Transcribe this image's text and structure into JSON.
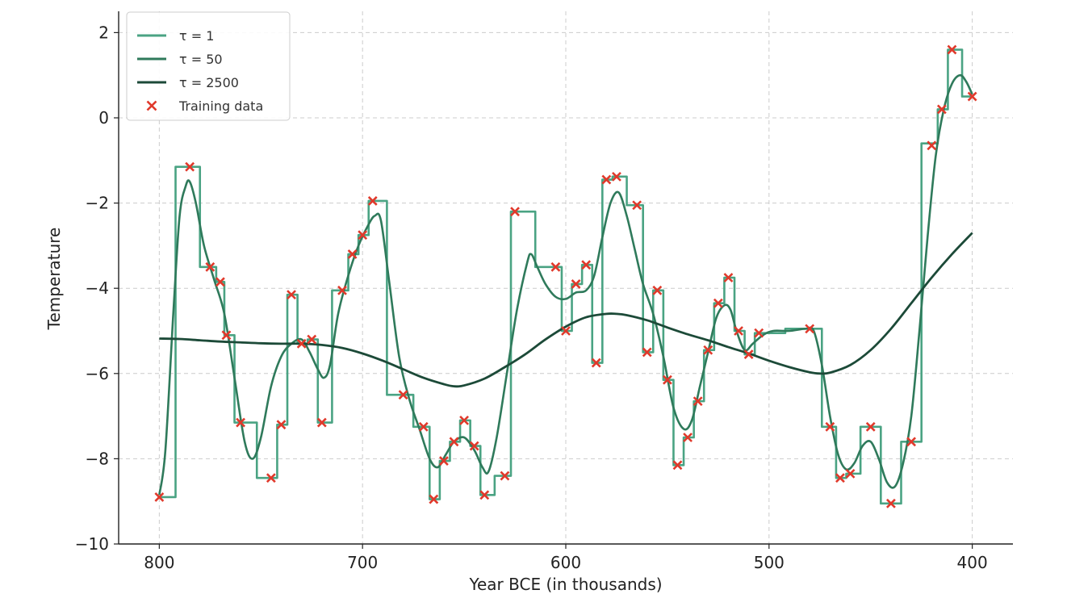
{
  "chart_data": {
    "type": "line",
    "xlabel": "Year BCE (in thousands)",
    "ylabel": "Temperature",
    "xlim": [
      820,
      380
    ],
    "ylim": [
      -10,
      2.5
    ],
    "x_reversed": true,
    "xticks": [
      800,
      700,
      600,
      500,
      400
    ],
    "yticks": [
      -10,
      -8,
      -6,
      -4,
      -2,
      0,
      2
    ],
    "xtick_labels": [
      "800",
      "700",
      "600",
      "500",
      "400"
    ],
    "ytick_labels": [
      "−10",
      "−8",
      "−6",
      "−4",
      "−2",
      "0",
      "2"
    ],
    "grid": true,
    "legend_position": "top-left",
    "legend": [
      "τ = 1",
      "τ = 50",
      "τ = 2500",
      "Training data"
    ],
    "colors": {
      "tau_1": "#4aa383",
      "tau_50": "#2f7a5b",
      "tau_2500": "#1c4a38",
      "training": "#e0392b"
    },
    "training_data": [
      [
        800,
        -8.9
      ],
      [
        785,
        -1.15
      ],
      [
        775,
        -3.5
      ],
      [
        770,
        -3.85
      ],
      [
        767,
        -5.1
      ],
      [
        760,
        -7.15
      ],
      [
        745,
        -8.45
      ],
      [
        740,
        -7.2
      ],
      [
        735,
        -4.15
      ],
      [
        730,
        -5.3
      ],
      [
        725,
        -5.2
      ],
      [
        720,
        -7.15
      ],
      [
        710,
        -4.05
      ],
      [
        705,
        -3.2
      ],
      [
        700,
        -2.75
      ],
      [
        695,
        -1.95
      ],
      [
        680,
        -6.5
      ],
      [
        670,
        -7.25
      ],
      [
        665,
        -8.95
      ],
      [
        660,
        -8.05
      ],
      [
        655,
        -7.6
      ],
      [
        650,
        -7.1
      ],
      [
        645,
        -7.7
      ],
      [
        640,
        -8.85
      ],
      [
        630,
        -8.4
      ],
      [
        625,
        -2.2
      ],
      [
        605,
        -3.5
      ],
      [
        600,
        -5.0
      ],
      [
        595,
        -3.9
      ],
      [
        590,
        -3.45
      ],
      [
        585,
        -5.75
      ],
      [
        580,
        -1.45
      ],
      [
        575,
        -1.38
      ],
      [
        565,
        -2.05
      ],
      [
        560,
        -5.5
      ],
      [
        555,
        -4.05
      ],
      [
        550,
        -6.15
      ],
      [
        545,
        -8.15
      ],
      [
        540,
        -7.5
      ],
      [
        535,
        -6.65
      ],
      [
        530,
        -5.45
      ],
      [
        525,
        -4.35
      ],
      [
        520,
        -3.75
      ],
      [
        515,
        -5.0
      ],
      [
        510,
        -5.55
      ],
      [
        505,
        -5.05
      ],
      [
        480,
        -4.95
      ],
      [
        470,
        -7.25
      ],
      [
        465,
        -8.45
      ],
      [
        460,
        -8.35
      ],
      [
        450,
        -7.25
      ],
      [
        440,
        -9.05
      ],
      [
        430,
        -7.6
      ],
      [
        420,
        -0.65
      ],
      [
        415,
        0.2
      ],
      [
        410,
        1.6
      ],
      [
        400,
        0.5
      ]
    ],
    "series": [
      {
        "name": "τ = 1",
        "interpolation": "step",
        "values": [
          [
            800,
            -8.9
          ],
          [
            792,
            -8.9
          ],
          [
            792,
            -1.15
          ],
          [
            780,
            -1.15
          ],
          [
            780,
            -3.5
          ],
          [
            772,
            -3.5
          ],
          [
            772,
            -3.85
          ],
          [
            768,
            -3.85
          ],
          [
            768,
            -5.1
          ],
          [
            763,
            -5.1
          ],
          [
            763,
            -7.15
          ],
          [
            752,
            -7.15
          ],
          [
            752,
            -8.45
          ],
          [
            742,
            -8.45
          ],
          [
            742,
            -7.2
          ],
          [
            737,
            -7.2
          ],
          [
            737,
            -4.15
          ],
          [
            732,
            -4.15
          ],
          [
            732,
            -5.3
          ],
          [
            727,
            -5.3
          ],
          [
            727,
            -5.2
          ],
          [
            722,
            -5.2
          ],
          [
            722,
            -7.15
          ],
          [
            715,
            -7.15
          ],
          [
            715,
            -4.05
          ],
          [
            707,
            -4.05
          ],
          [
            707,
            -3.2
          ],
          [
            702,
            -3.2
          ],
          [
            702,
            -2.75
          ],
          [
            697,
            -2.75
          ],
          [
            697,
            -1.95
          ],
          [
            688,
            -1.95
          ],
          [
            688,
            -6.5
          ],
          [
            675,
            -6.5
          ],
          [
            675,
            -7.25
          ],
          [
            667,
            -7.25
          ],
          [
            667,
            -8.95
          ],
          [
            662,
            -8.95
          ],
          [
            662,
            -8.05
          ],
          [
            657,
            -8.05
          ],
          [
            657,
            -7.6
          ],
          [
            652,
            -7.6
          ],
          [
            652,
            -7.1
          ],
          [
            647,
            -7.1
          ],
          [
            647,
            -7.7
          ],
          [
            642,
            -7.7
          ],
          [
            642,
            -8.85
          ],
          [
            635,
            -8.85
          ],
          [
            635,
            -8.4
          ],
          [
            627,
            -8.4
          ],
          [
            627,
            -2.2
          ],
          [
            615,
            -2.2
          ],
          [
            615,
            -3.5
          ],
          [
            602,
            -3.5
          ],
          [
            602,
            -5.0
          ],
          [
            597,
            -5.0
          ],
          [
            597,
            -3.9
          ],
          [
            592,
            -3.9
          ],
          [
            592,
            -3.45
          ],
          [
            587,
            -3.45
          ],
          [
            587,
            -5.75
          ],
          [
            582,
            -5.75
          ],
          [
            582,
            -1.45
          ],
          [
            577,
            -1.45
          ],
          [
            577,
            -1.38
          ],
          [
            570,
            -1.38
          ],
          [
            570,
            -2.05
          ],
          [
            562,
            -2.05
          ],
          [
            562,
            -5.5
          ],
          [
            557,
            -5.5
          ],
          [
            557,
            -4.05
          ],
          [
            552,
            -4.05
          ],
          [
            552,
            -6.15
          ],
          [
            547,
            -6.15
          ],
          [
            547,
            -8.15
          ],
          [
            542,
            -8.15
          ],
          [
            542,
            -7.5
          ],
          [
            537,
            -7.5
          ],
          [
            537,
            -6.65
          ],
          [
            532,
            -6.65
          ],
          [
            532,
            -5.45
          ],
          [
            527,
            -5.45
          ],
          [
            527,
            -4.35
          ],
          [
            522,
            -4.35
          ],
          [
            522,
            -3.75
          ],
          [
            517,
            -3.75
          ],
          [
            517,
            -5.0
          ],
          [
            512,
            -5.0
          ],
          [
            512,
            -5.55
          ],
          [
            507,
            -5.55
          ],
          [
            507,
            -5.05
          ],
          [
            492,
            -5.05
          ],
          [
            492,
            -4.95
          ],
          [
            474,
            -4.95
          ],
          [
            474,
            -7.25
          ],
          [
            467,
            -7.25
          ],
          [
            467,
            -8.45
          ],
          [
            462,
            -8.45
          ],
          [
            462,
            -8.35
          ],
          [
            455,
            -8.35
          ],
          [
            455,
            -7.25
          ],
          [
            445,
            -7.25
          ],
          [
            445,
            -9.05
          ],
          [
            435,
            -9.05
          ],
          [
            435,
            -7.6
          ],
          [
            425,
            -7.6
          ],
          [
            425,
            -0.6
          ],
          [
            417,
            -0.6
          ],
          [
            417,
            0.2
          ],
          [
            412,
            0.2
          ],
          [
            412,
            1.6
          ],
          [
            405,
            1.6
          ],
          [
            405,
            0.5
          ],
          [
            400,
            0.5
          ]
        ]
      },
      {
        "name": "τ = 50",
        "interpolation": "smooth",
        "values": [
          [
            800,
            -8.85
          ],
          [
            797,
            -7.8
          ],
          [
            793,
            -4.5
          ],
          [
            790,
            -2.3
          ],
          [
            787,
            -1.6
          ],
          [
            785,
            -1.5
          ],
          [
            782,
            -2.0
          ],
          [
            778,
            -3.0
          ],
          [
            773,
            -3.8
          ],
          [
            768,
            -4.6
          ],
          [
            763,
            -6.1
          ],
          [
            758,
            -7.6
          ],
          [
            754,
            -8.0
          ],
          [
            750,
            -7.5
          ],
          [
            745,
            -6.3
          ],
          [
            740,
            -5.6
          ],
          [
            735,
            -5.3
          ],
          [
            730,
            -5.2
          ],
          [
            726,
            -5.5
          ],
          [
            722,
            -5.9
          ],
          [
            719,
            -6.1
          ],
          [
            716,
            -5.8
          ],
          [
            712,
            -4.6
          ],
          [
            707,
            -3.7
          ],
          [
            702,
            -3.0
          ],
          [
            697,
            -2.5
          ],
          [
            694,
            -2.3
          ],
          [
            691,
            -2.4
          ],
          [
            687,
            -3.8
          ],
          [
            682,
            -5.6
          ],
          [
            677,
            -6.6
          ],
          [
            672,
            -7.3
          ],
          [
            667,
            -8.0
          ],
          [
            663,
            -8.2
          ],
          [
            659,
            -7.9
          ],
          [
            655,
            -7.6
          ],
          [
            650,
            -7.5
          ],
          [
            645,
            -7.8
          ],
          [
            641,
            -8.2
          ],
          [
            638,
            -8.3
          ],
          [
            634,
            -7.5
          ],
          [
            629,
            -6.0
          ],
          [
            624,
            -4.5
          ],
          [
            619,
            -3.4
          ],
          [
            617,
            -3.2
          ],
          [
            614,
            -3.5
          ],
          [
            610,
            -3.9
          ],
          [
            605,
            -4.2
          ],
          [
            600,
            -4.25
          ],
          [
            595,
            -4.1
          ],
          [
            590,
            -4.05
          ],
          [
            586,
            -3.7
          ],
          [
            582,
            -2.8
          ],
          [
            578,
            -2.0
          ],
          [
            574,
            -1.75
          ],
          [
            570,
            -2.3
          ],
          [
            566,
            -3.1
          ],
          [
            562,
            -3.9
          ],
          [
            557,
            -4.6
          ],
          [
            552,
            -5.6
          ],
          [
            547,
            -6.8
          ],
          [
            542,
            -7.3
          ],
          [
            538,
            -7.1
          ],
          [
            534,
            -6.3
          ],
          [
            530,
            -5.5
          ],
          [
            526,
            -4.7
          ],
          [
            522,
            -4.4
          ],
          [
            519,
            -4.5
          ],
          [
            516,
            -5.0
          ],
          [
            512,
            -5.45
          ],
          [
            508,
            -5.3
          ],
          [
            503,
            -5.1
          ],
          [
            498,
            -5.0
          ],
          [
            490,
            -5.0
          ],
          [
            482,
            -4.95
          ],
          [
            478,
            -5.0
          ],
          [
            474,
            -5.8
          ],
          [
            470,
            -7.0
          ],
          [
            466,
            -7.9
          ],
          [
            462,
            -8.25
          ],
          [
            458,
            -8.1
          ],
          [
            454,
            -7.7
          ],
          [
            450,
            -7.6
          ],
          [
            446,
            -8.0
          ],
          [
            442,
            -8.55
          ],
          [
            438,
            -8.65
          ],
          [
            434,
            -8.1
          ],
          [
            430,
            -7.0
          ],
          [
            426,
            -5.0
          ],
          [
            422,
            -2.8
          ],
          [
            418,
            -0.9
          ],
          [
            414,
            0.2
          ],
          [
            410,
            0.8
          ],
          [
            406,
            1.0
          ],
          [
            403,
            0.85
          ],
          [
            400,
            0.55
          ]
        ]
      },
      {
        "name": "τ = 2500",
        "interpolation": "smooth",
        "values": [
          [
            800,
            -5.18
          ],
          [
            790,
            -5.19
          ],
          [
            780,
            -5.22
          ],
          [
            770,
            -5.25
          ],
          [
            760,
            -5.27
          ],
          [
            750,
            -5.29
          ],
          [
            740,
            -5.3
          ],
          [
            730,
            -5.3
          ],
          [
            720,
            -5.33
          ],
          [
            710,
            -5.4
          ],
          [
            700,
            -5.53
          ],
          [
            690,
            -5.7
          ],
          [
            680,
            -5.9
          ],
          [
            670,
            -6.1
          ],
          [
            660,
            -6.25
          ],
          [
            655,
            -6.3
          ],
          [
            650,
            -6.28
          ],
          [
            640,
            -6.12
          ],
          [
            630,
            -5.85
          ],
          [
            620,
            -5.55
          ],
          [
            610,
            -5.2
          ],
          [
            600,
            -4.9
          ],
          [
            590,
            -4.68
          ],
          [
            580,
            -4.6
          ],
          [
            575,
            -4.6
          ],
          [
            570,
            -4.63
          ],
          [
            560,
            -4.75
          ],
          [
            550,
            -4.92
          ],
          [
            540,
            -5.08
          ],
          [
            530,
            -5.22
          ],
          [
            520,
            -5.38
          ],
          [
            510,
            -5.53
          ],
          [
            500,
            -5.7
          ],
          [
            490,
            -5.85
          ],
          [
            480,
            -5.97
          ],
          [
            475,
            -6.0
          ],
          [
            470,
            -5.98
          ],
          [
            460,
            -5.8
          ],
          [
            450,
            -5.45
          ],
          [
            440,
            -4.95
          ],
          [
            430,
            -4.35
          ],
          [
            420,
            -3.75
          ],
          [
            410,
            -3.2
          ],
          [
            400,
            -2.7
          ]
        ]
      }
    ]
  }
}
